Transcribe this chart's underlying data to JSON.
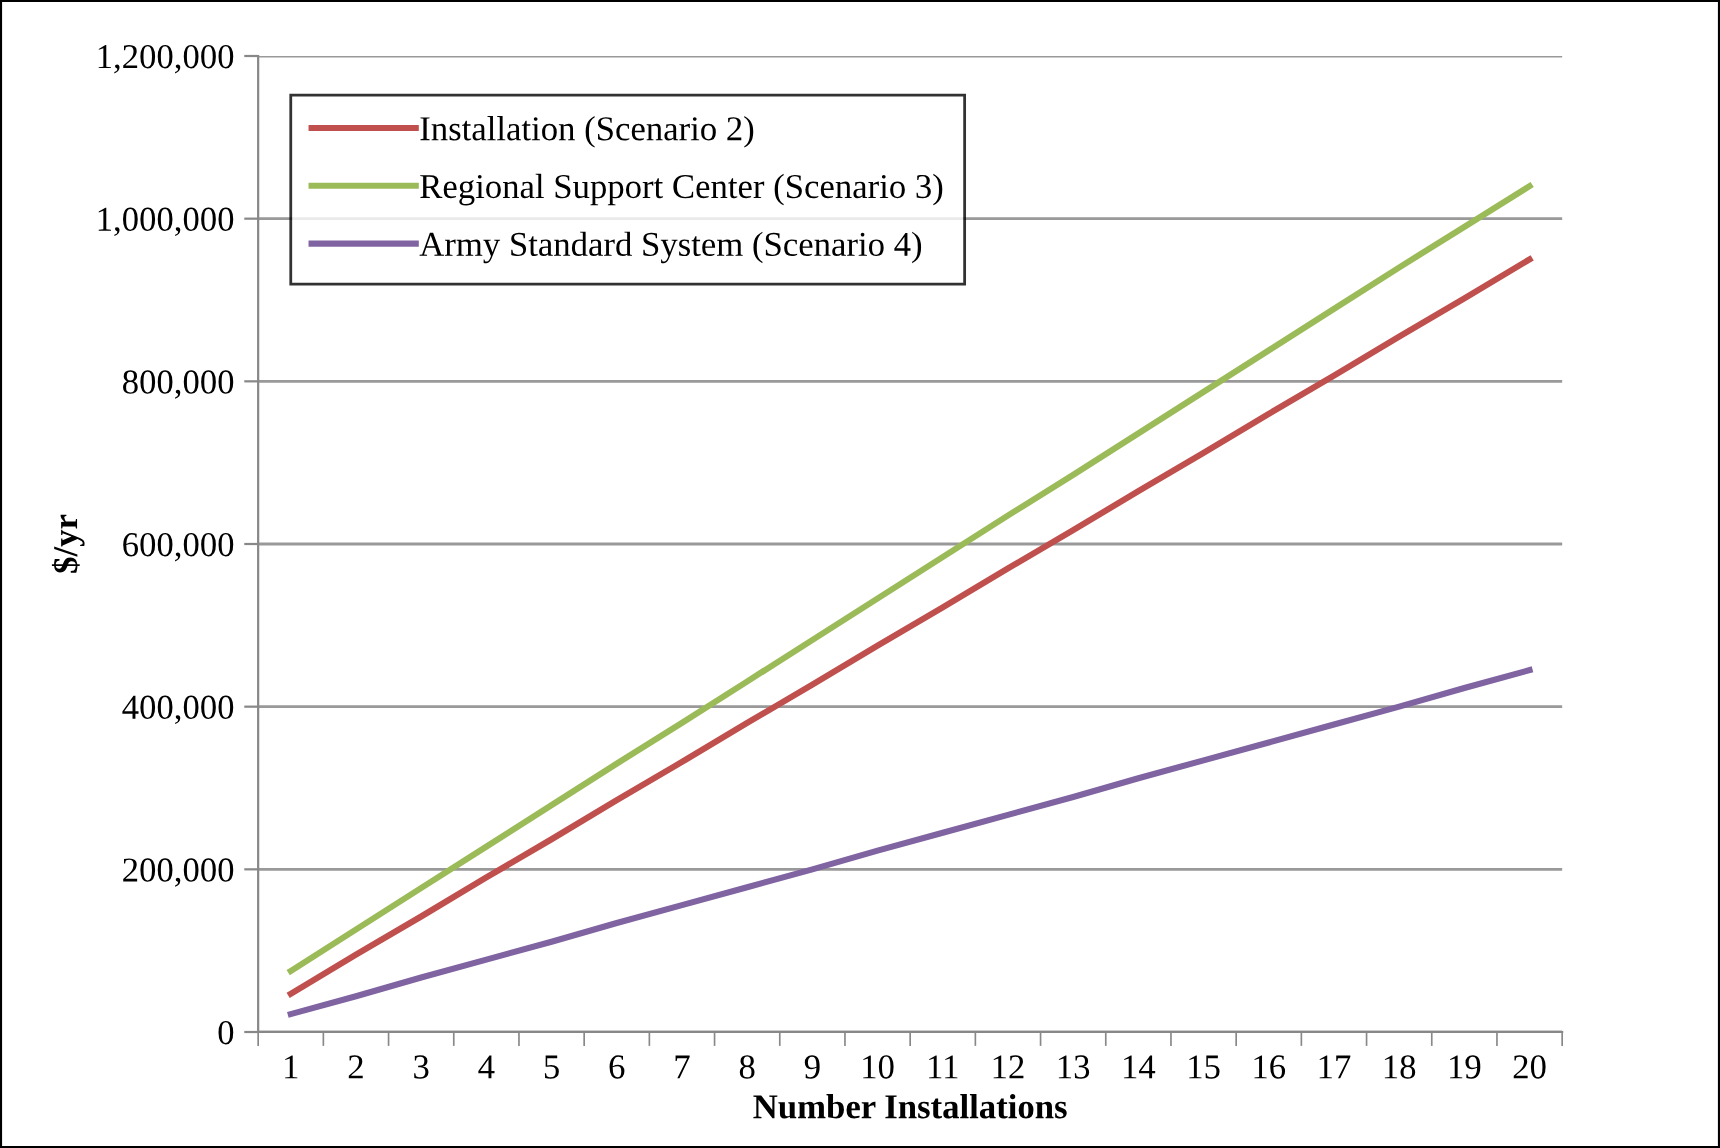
{
  "chart_data": {
    "type": "line",
    "xlabel": "Number Installations",
    "ylabel": "$/yr",
    "categories": [
      "1",
      "2",
      "3",
      "4",
      "5",
      "6",
      "7",
      "8",
      "9",
      "10",
      "11",
      "12",
      "13",
      "14",
      "15",
      "16",
      "17",
      "18",
      "19",
      "20"
    ],
    "series": [
      {
        "name": "Installation (Scenario 2)",
        "color": "#c0504d",
        "values": [
          47000,
          95000,
          142000,
          190000,
          237000,
          285000,
          332000,
          380000,
          427000,
          475000,
          522000,
          570000,
          617000,
          665000,
          712000,
          760000,
          807000,
          855000,
          902000,
          950000
        ]
      },
      {
        "name": "Regional Support Center (Scenario 3)",
        "color": "#9bbb59",
        "values": [
          75000,
          126000,
          177000,
          228000,
          279000,
          330000,
          380000,
          431000,
          482000,
          533000,
          584000,
          635000,
          685000,
          736000,
          787000,
          838000,
          889000,
          940000,
          990000,
          1040000
        ]
      },
      {
        "name": "Army Standard System (Scenario 4)",
        "color": "#8064a2",
        "values": [
          22000,
          44000,
          67000,
          89000,
          111000,
          134000,
          156000,
          178000,
          200000,
          223000,
          245000,
          267000,
          289000,
          312000,
          334000,
          356000,
          378000,
          400000,
          423000,
          445000
        ]
      }
    ],
    "ylim": [
      0,
      1200000
    ],
    "yticks": [
      {
        "value": 0,
        "label": "0"
      },
      {
        "value": 200000,
        "label": "200,000"
      },
      {
        "value": 400000,
        "label": "400,000"
      },
      {
        "value": 600000,
        "label": "600,000"
      },
      {
        "value": 800000,
        "label": "800,000"
      },
      {
        "value": 1000000,
        "label": "1,000,000"
      },
      {
        "value": 1200000,
        "label": "1,200,000"
      }
    ],
    "grid": "y",
    "legend": "top left",
    "marker": "none",
    "line_style": "solid"
  }
}
